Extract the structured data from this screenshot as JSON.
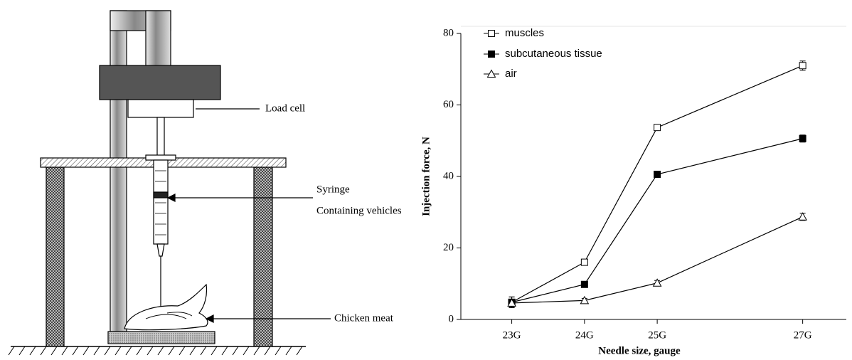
{
  "diagram": {
    "labels": [
      "Load cell",
      "Syringe",
      "Containing vehicles",
      "Chicken meat"
    ]
  },
  "chart_data": {
    "type": "line",
    "xlabel": "Needle size, gauge",
    "ylabel": "Injection force, N",
    "x": [
      23,
      24,
      25,
      27
    ],
    "xlim": [
      22.3,
      27.6
    ],
    "xticks": [
      {
        "value": 23,
        "label": "23G"
      },
      {
        "value": 24,
        "label": "24G"
      },
      {
        "value": 25,
        "label": "25G"
      },
      {
        "value": 27,
        "label": "27G"
      }
    ],
    "ylim": [
      0,
      80
    ],
    "yticks": [
      0,
      20,
      40,
      60,
      80
    ],
    "legend": "top-left",
    "series": [
      {
        "name": "muscles",
        "color": "#000000",
        "marker": "square-open",
        "values": [
          4.8,
          16,
          53.7,
          71
        ],
        "errors": [
          1.5,
          0.3,
          0.5,
          1.3
        ]
      },
      {
        "name": "subcutaneous tissue",
        "color": "#000000",
        "marker": "square-filled",
        "values": [
          4.8,
          9.8,
          40.6,
          50.6
        ],
        "errors": [
          1.5,
          0.3,
          0.5,
          1
        ]
      },
      {
        "name": "air",
        "color": "#000000",
        "marker": "triangle-open",
        "values": [
          4.6,
          5.3,
          10.2,
          28.7
        ],
        "errors": [
          1,
          0.6,
          0.7,
          1
        ]
      }
    ]
  }
}
